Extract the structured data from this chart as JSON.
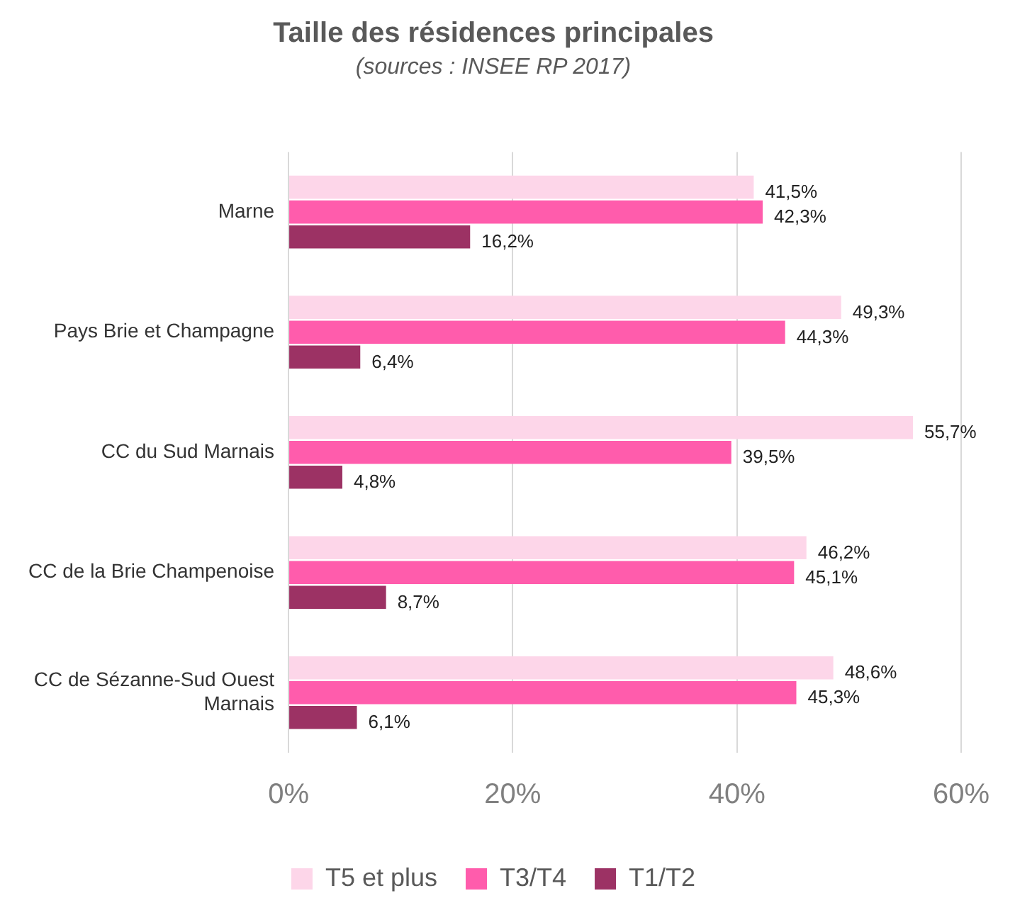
{
  "chart_data": {
    "type": "bar",
    "orientation": "horizontal",
    "title": "Taille des résidences principales",
    "subtitle": "(sources : INSEE RP 2017)",
    "categories": [
      "Marne",
      "Pays Brie et Champagne",
      "CC du Sud Marnais",
      "CC de la Brie Champenoise",
      "CC de Sézanne-Sud Ouest Marnais"
    ],
    "series": [
      {
        "name": "T5 et plus",
        "color": "#fdd6e9",
        "values": [
          41.5,
          49.3,
          55.7,
          46.2,
          48.6
        ],
        "value_labels": [
          "41,5%",
          "49,3%",
          "55,7%",
          "46,2%",
          "48,6%"
        ]
      },
      {
        "name": "T3/T4",
        "color": "#ff5cac",
        "values": [
          42.3,
          44.3,
          39.5,
          45.1,
          45.3
        ],
        "value_labels": [
          "42,3%",
          "44,3%",
          "39,5%",
          "45,1%",
          "45,3%"
        ]
      },
      {
        "name": "T1/T2",
        "color": "#9c3264",
        "values": [
          16.2,
          6.4,
          4.8,
          8.7,
          6.1
        ],
        "value_labels": [
          "16,2%",
          "6,4%",
          "4,8%",
          "8,7%",
          "6,1%"
        ]
      }
    ],
    "xlim": [
      0,
      60
    ],
    "xticks": [
      {
        "value": 0,
        "label": "0%"
      },
      {
        "value": 20,
        "label": "20%"
      },
      {
        "value": 40,
        "label": "40%"
      },
      {
        "value": 60,
        "label": "60%"
      }
    ],
    "grid": "x",
    "legend": "bottom"
  }
}
